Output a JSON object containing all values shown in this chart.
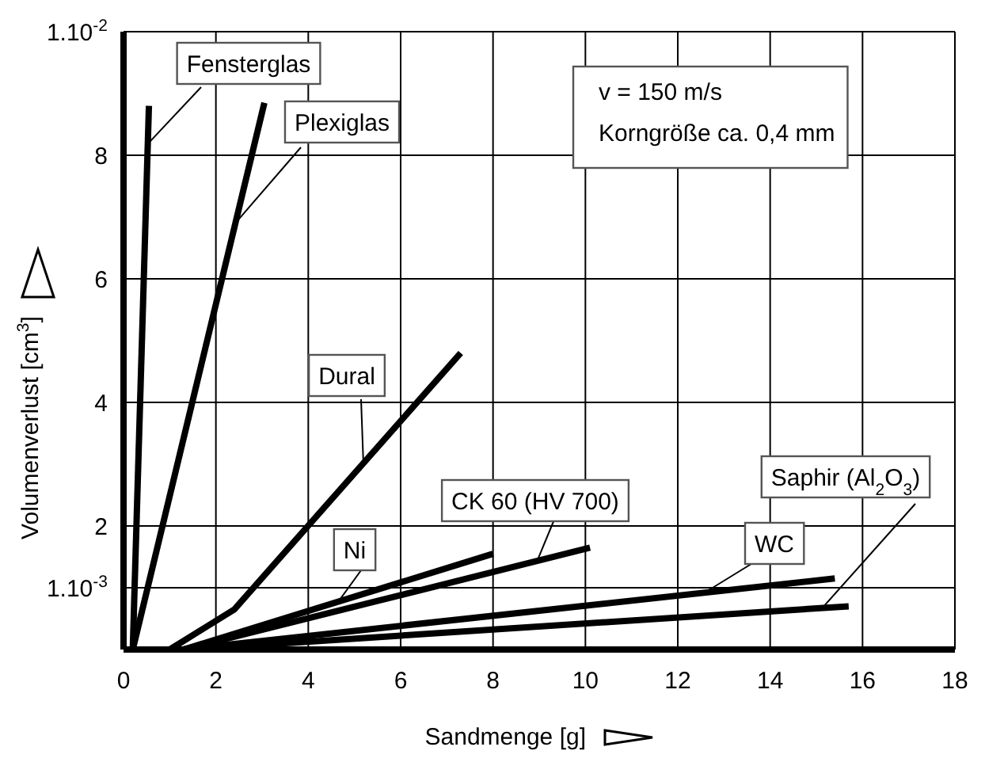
{
  "chart_data": {
    "type": "line",
    "xlabel": "Sandmenge [g]",
    "ylabel": "Volumenverlust [cm$^{3}$]",
    "xlim": [
      0,
      18
    ],
    "ylim": [
      0,
      10
    ],
    "xticks": [
      0,
      2,
      4,
      6,
      8,
      10,
      12,
      14,
      16,
      18
    ],
    "yticks": [
      {
        "value": 1,
        "label": "1.10$^{-3}$"
      },
      2,
      4,
      6,
      8,
      {
        "value": 10,
        "label": "1.10$^{-2}$"
      }
    ],
    "grid": true,
    "line_style": "solid",
    "annotations": [
      "v = 150 m/s",
      "Korngröße ca. 0,4 mm"
    ],
    "series": [
      {
        "name": "Fensterglas",
        "color": "#000000",
        "x": [
          0.2,
          0.55
        ],
        "values": [
          0,
          8.8
        ]
      },
      {
        "name": "Plexiglas",
        "color": "#000000",
        "x": [
          0.2,
          3.05
        ],
        "values": [
          0,
          8.85
        ]
      },
      {
        "name": "Dural",
        "color": "#000000",
        "x": [
          1.0,
          2.4,
          7.3
        ],
        "values": [
          0,
          0.65,
          4.8
        ]
      },
      {
        "name": "Ni",
        "color": "#000000",
        "x": [
          1.3,
          8.0
        ],
        "values": [
          0,
          1.55
        ]
      },
      {
        "name": "CK 60 (HV 700)",
        "color": "#000000",
        "x": [
          1.3,
          10.1
        ],
        "values": [
          0,
          1.65
        ]
      },
      {
        "name": "WC",
        "color": "#000000",
        "x": [
          1.3,
          15.4
        ],
        "values": [
          0,
          1.15
        ]
      },
      {
        "name": "Saphir (Al$_{2}$O$_{3}$)",
        "color": "#000000",
        "x": [
          1.4,
          15.7
        ],
        "values": [
          0,
          0.7
        ]
      }
    ]
  }
}
